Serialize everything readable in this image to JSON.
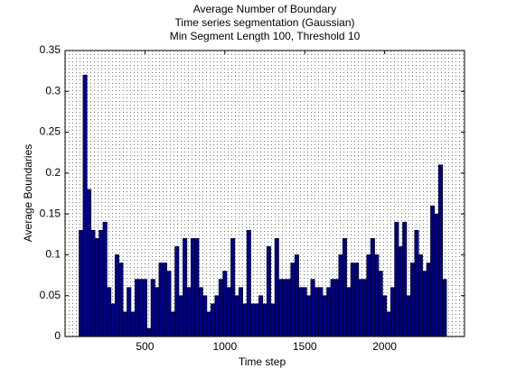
{
  "chart_data": {
    "type": "bar",
    "title": [
      "Average Number of Boundary",
      "Time series segmentation (Gaussian)",
      "Min Segment Length 100, Threshold 10"
    ],
    "x_label": "Time step",
    "y_label": "Average Boundaries",
    "x": [
      100,
      125,
      150,
      175,
      200,
      225,
      250,
      275,
      300,
      325,
      350,
      375,
      400,
      425,
      450,
      475,
      500,
      525,
      550,
      575,
      600,
      625,
      650,
      675,
      700,
      725,
      750,
      775,
      800,
      825,
      850,
      875,
      900,
      925,
      950,
      975,
      1000,
      1025,
      1050,
      1075,
      1100,
      1125,
      1150,
      1175,
      1200,
      1225,
      1250,
      1275,
      1300,
      1325,
      1350,
      1375,
      1400,
      1425,
      1450,
      1475,
      1500,
      1525,
      1550,
      1575,
      1600,
      1625,
      1650,
      1675,
      1700,
      1725,
      1750,
      1775,
      1800,
      1825,
      1850,
      1875,
      1900,
      1925,
      1950,
      1975,
      2000,
      2025,
      2050,
      2075,
      2100,
      2125,
      2150,
      2175,
      2200,
      2225,
      2250,
      2275,
      2300,
      2325,
      2350,
      2375
    ],
    "values": [
      0.13,
      0.32,
      0.18,
      0.13,
      0.12,
      0.13,
      0.14,
      0.06,
      0.04,
      0.1,
      0.09,
      0.03,
      0.06,
      0.03,
      0.07,
      0.07,
      0.07,
      0.01,
      0.07,
      0.06,
      0.09,
      0.09,
      0.08,
      0.03,
      0.11,
      0.05,
      0.12,
      0.06,
      0.12,
      0.12,
      0.06,
      0.05,
      0.03,
      0.04,
      0.05,
      0.07,
      0.08,
      0.06,
      0.12,
      0.05,
      0.06,
      0.04,
      0.13,
      0.04,
      0.04,
      0.05,
      0.04,
      0.11,
      0.04,
      0.12,
      0.07,
      0.07,
      0.07,
      0.09,
      0.1,
      0.06,
      0.06,
      0.05,
      0.07,
      0.06,
      0.06,
      0.05,
      0.06,
      0.07,
      0.07,
      0.1,
      0.12,
      0.06,
      0.09,
      0.09,
      0.07,
      0.07,
      0.1,
      0.12,
      0.1,
      0.08,
      0.05,
      0.03,
      0.06,
      0.14,
      0.11,
      0.14,
      0.05,
      0.09,
      0.13,
      0.1,
      0.08,
      0.09,
      0.16,
      0.15,
      0.21,
      0.07
    ],
    "color": "#00008b",
    "xlim": [
      0,
      2500
    ],
    "xticks": [
      500,
      1000,
      1500,
      2000
    ],
    "ylim": [
      0,
      0.35
    ],
    "yticks": [
      0,
      0.05,
      0.1,
      0.15,
      0.2,
      0.25,
      0.3,
      0.35
    ],
    "grid": true
  }
}
